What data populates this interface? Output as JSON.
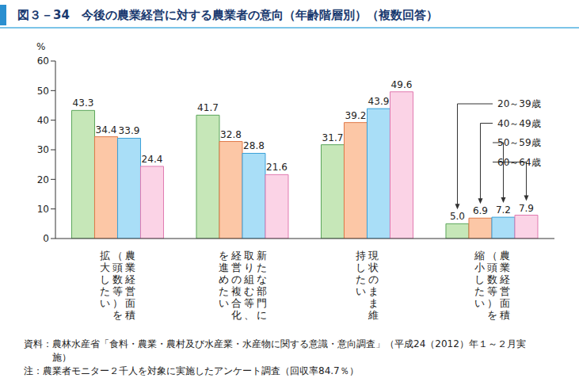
{
  "chart_data": {
    "type": "bar",
    "title": "図３－34　今後の農業経営に対する農業者の意向（年齢階層別）（複数回答）",
    "y_label": "%",
    "categories": [
      "農業経営面積（頭数等）を拡大したい",
      "新たな部門に取り組む等、経営の複合化を進めたい",
      "現状のまま維持したい",
      "農業経営面積（頭数等）を縮小したい"
    ],
    "series": [
      {
        "name": "20～39歳",
        "color": "#c6e7b8",
        "values": [
          43.3,
          41.7,
          31.7,
          5.0
        ],
        "value_labels": [
          "43.3",
          "41.7",
          "31.7",
          "5.0"
        ]
      },
      {
        "name": "40～49歳",
        "color": "#fcc7a6",
        "values": [
          34.4,
          32.8,
          39.2,
          6.9
        ],
        "value_labels": [
          "34.4",
          "32.8",
          "39.2",
          "6.9"
        ]
      },
      {
        "name": "50～59歳",
        "color": "#a9def7",
        "values": [
          33.9,
          28.8,
          43.9,
          7.2
        ],
        "value_labels": [
          "33.9",
          "28.8",
          "43.9",
          "7.2"
        ]
      },
      {
        "name": "60～64歳",
        "color": "#fbd3e6",
        "values": [
          24.4,
          21.6,
          49.6,
          7.9
        ],
        "value_labels": [
          "24.4",
          "21.6",
          "49.6",
          "7.9"
        ]
      }
    ],
    "ylim": [
      0,
      60
    ],
    "yticks": [
      0,
      10,
      20,
      30,
      40,
      50,
      60
    ],
    "grid": false,
    "data_labels": true,
    "legend": "right",
    "annotations": [
      "資料：農林水産省「食料・農業・農村及び水産業・水産物に関する意識・意向調査」（平成24（2012）年１～２月実施）",
      "注：農業者モニター２千人を対象に実施したアンケート調査（回収率84.7％）"
    ]
  }
}
